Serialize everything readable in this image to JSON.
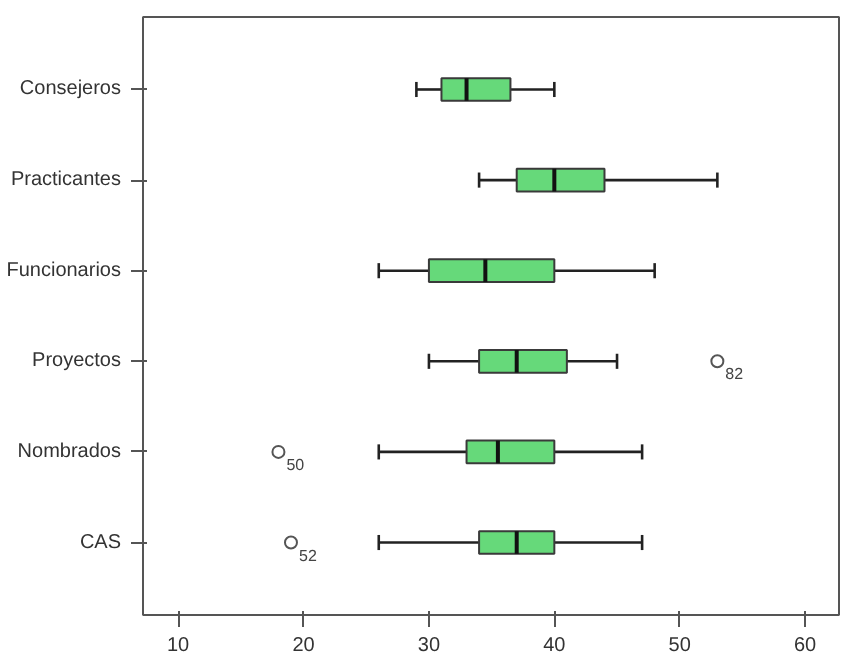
{
  "chart_data": {
    "type": "box",
    "orientation": "horizontal",
    "categories": [
      "Consejeros",
      "Practicantes",
      "Funcionarios",
      "Proyectos",
      "Nombrados",
      "CAS"
    ],
    "boxes": [
      {
        "low": 29,
        "q1": 31,
        "median": 33,
        "q3": 36.5,
        "high": 40
      },
      {
        "low": 34,
        "q1": 37,
        "median": 40,
        "q3": 44,
        "high": 53
      },
      {
        "low": 26,
        "q1": 30,
        "median": 34.5,
        "q3": 40,
        "high": 48
      },
      {
        "low": 30,
        "q1": 34,
        "median": 37,
        "q3": 41,
        "high": 45,
        "outliers": [
          53
        ]
      },
      {
        "low": 26,
        "q1": 33,
        "median": 35.5,
        "q3": 40,
        "high": 47,
        "outliers": [
          18
        ]
      },
      {
        "low": 26,
        "q1": 34,
        "median": 37,
        "q3": 40,
        "high": 47,
        "outliers": [
          19
        ]
      }
    ],
    "color": "#66d97a",
    "xlim": [
      7.2,
      62.7
    ],
    "xticks": [
      10,
      20,
      30,
      40,
      50,
      60
    ],
    "grid": false,
    "annotations": [
      "82",
      "50",
      "52"
    ]
  }
}
